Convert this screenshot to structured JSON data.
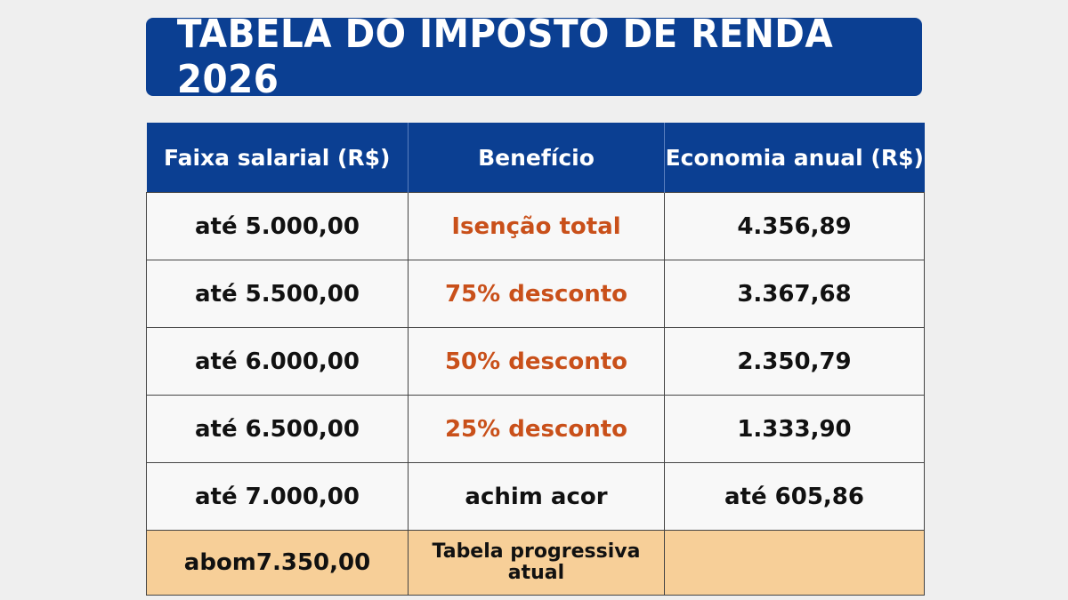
{
  "title": "TABELA DO IMPOSTO DE RENDA 2026",
  "table": {
    "headers": [
      "Faixa salarial (R$)",
      "Benefício",
      "Economia anual (R$)"
    ],
    "rows": [
      {
        "faixa": "até 5.000,00",
        "beneficio": "Isenção total",
        "economia": "4.356,89"
      },
      {
        "faixa": "até 5.500,00",
        "beneficio": "75% desconto",
        "economia": "3.367,68"
      },
      {
        "faixa": "até 6.000,00",
        "beneficio": "50% desconto",
        "economia": "2.350,79"
      },
      {
        "faixa": "até 6.500,00",
        "beneficio": "25% desconto",
        "economia": "1.333,90"
      },
      {
        "faixa": "até 7.000,00",
        "beneficio": "achim acor",
        "economia": "até 605,86"
      },
      {
        "faixa": "abom7.350,00",
        "beneficio": "Tabela progressiva atual",
        "economia": ""
      }
    ]
  },
  "colors": {
    "header_blue": "#0b3f92",
    "benefit_orange": "#c9501a",
    "highlight_row": "#f7cf98"
  }
}
